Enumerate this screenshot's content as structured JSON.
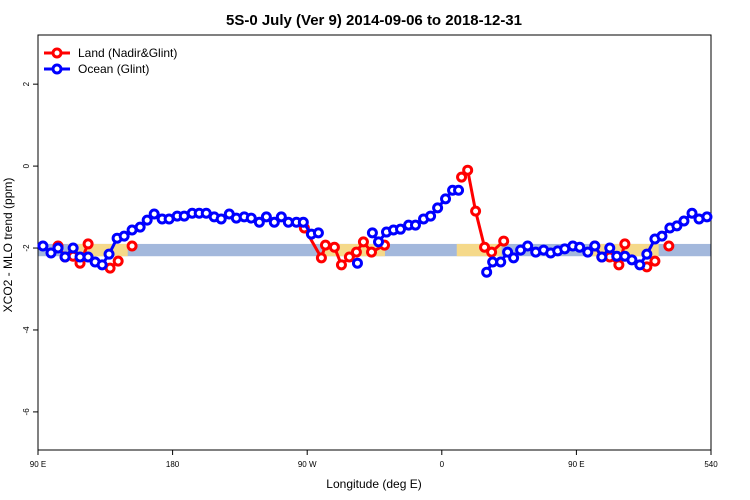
{
  "chart_data": {
    "type": "line",
    "title": "5S-0 July (Ver 9)   2014-09-06 to 2018-12-31",
    "x_label": "Longitude (deg E)",
    "y_label": "XCO2 - MLO trend (ppm)",
    "xlim": [
      90,
      540
    ],
    "ylim": [
      -6.93,
      3.2
    ],
    "xticks": [
      {
        "value": 90,
        "label": "90 E"
      },
      180,
      {
        "value": 270,
        "label": "90 W"
      },
      {
        "value": 360,
        "label": "0"
      },
      {
        "value": 450,
        "label": "90 E"
      },
      540
    ],
    "yticks": [
      -6,
      -4,
      -2,
      0,
      2
    ],
    "legend": "topleft",
    "reference_band": {
      "range": [
        -2.2,
        -1.9
      ],
      "color": "#a3b8dc"
    },
    "highlight_segments": {
      "color": "#f5d98a",
      "ranges": [
        [
          110,
          150
        ],
        [
          280,
          322
        ],
        [
          370,
          400
        ],
        [
          460,
          505
        ]
      ]
    },
    "series": [
      {
        "name": "Land (Nadir&Glint)",
        "color": "#ff0000",
        "x": [
          103.4,
          108.1,
          113.5,
          118.1,
          123.5,
          null,
          138.2,
          143.6,
          null,
          152.9,
          null,
          268.1,
          279.5,
          282.2,
          288.2,
          292.9,
          298.2,
          302.9,
          307.6,
          313,
          321.7,
          null,
          373.2,
          377.3,
          382.6,
          388.6,
          393.3,
          401.4,
          null,
          462.3,
          467,
          472.3,
          478.4,
          482.4,
          null,
          497.1,
          502.5,
          null,
          511.8
        ],
        "values": [
          -1.95,
          -2.22,
          -2.2,
          -2.37,
          -1.9,
          null,
          -2.49,
          -2.32,
          null,
          -1.95,
          null,
          -1.51,
          -2.24,
          -1.93,
          -1.98,
          -2.41,
          -2.22,
          -2.1,
          -1.85,
          -2.1,
          -1.93,
          null,
          -0.27,
          -0.1,
          -1.1,
          -1.98,
          -2.1,
          -1.83,
          null,
          -1.95,
          -2.22,
          -2.22,
          -2.41,
          -1.9,
          null,
          -2.46,
          -2.32,
          null,
          -1.95
        ]
      },
      {
        "name": "Ocean (Glint)",
        "color": "#0000ff",
        "x": [
          93.3,
          98.7,
          103.4,
          108.1,
          113.5,
          118.1,
          123.5,
          128.2,
          132.9,
          137.5,
          142.9,
          147.6,
          152.9,
          158.3,
          163,
          167.7,
          173,
          177.7,
          183.1,
          187.8,
          193.1,
          197.8,
          202.5,
          207.8,
          212.5,
          217.9,
          222.6,
          227.9,
          232.6,
          238,
          242.7,
          248,
          252.7,
          257.4,
          262.8,
          267.4,
          272.8,
          277.5,
          null,
          303.6,
          null,
          313.6,
          317.7,
          323,
          327.7,
          332.4,
          337.8,
          342.4,
          347.8,
          352.5,
          357.2,
          362.5,
          367.2,
          371.2,
          null,
          390,
          394,
          399.4,
          404,
          408,
          412.7,
          417.4,
          422.8,
          428.1,
          432.8,
          437.5,
          442.2,
          447.6,
          452.2,
          457.6,
          462.3,
          467,
          472.3,
          477,
          482.4,
          487.1,
          492.4,
          497.1,
          502.5,
          507.2,
          512.5,
          517.2,
          521.9,
          527.3,
          532,
          537.3
        ],
        "values": [
          -1.95,
          -2.12,
          -2.0,
          -2.22,
          -2.0,
          -2.22,
          -2.22,
          -2.34,
          -2.41,
          -2.15,
          -1.76,
          -1.71,
          -1.56,
          -1.49,
          -1.32,
          -1.17,
          -1.29,
          -1.29,
          -1.22,
          -1.22,
          -1.15,
          -1.15,
          -1.15,
          -1.24,
          -1.29,
          -1.17,
          -1.27,
          -1.24,
          -1.27,
          -1.37,
          -1.24,
          -1.37,
          -1.24,
          -1.37,
          -1.37,
          -1.37,
          -1.66,
          -1.63,
          null,
          -2.37,
          null,
          -1.63,
          -1.85,
          -1.61,
          -1.56,
          -1.54,
          -1.44,
          -1.44,
          -1.29,
          -1.22,
          -1.02,
          -0.8,
          -0.59,
          -0.59,
          null,
          -2.59,
          -2.34,
          -2.34,
          -2.1,
          -2.24,
          -2.05,
          -1.95,
          -2.1,
          -2.05,
          -2.12,
          -2.07,
          -2.02,
          -1.95,
          -1.98,
          -2.1,
          -1.95,
          -2.22,
          -2.0,
          -2.2,
          -2.2,
          -2.29,
          -2.41,
          -2.15,
          -1.78,
          -1.71,
          -1.51,
          -1.46,
          -1.34,
          -1.15,
          -1.29,
          -1.24
        ]
      }
    ]
  }
}
